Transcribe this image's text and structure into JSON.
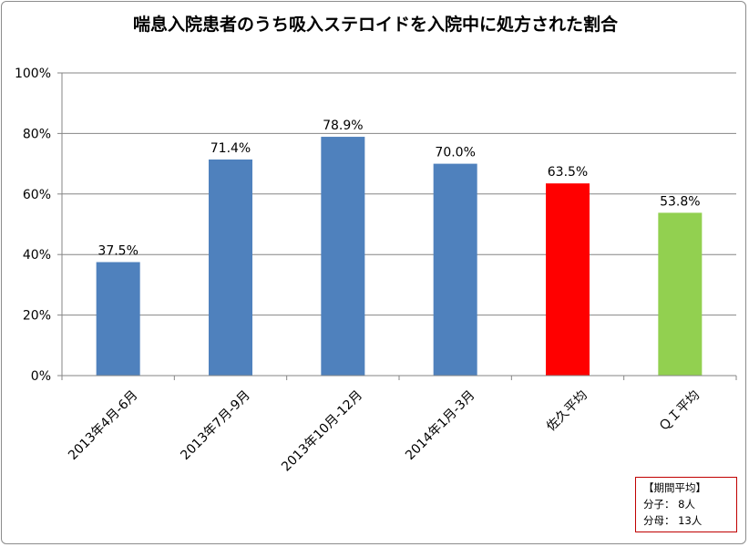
{
  "chart_data": {
    "type": "bar",
    "title": "喘息入院患者のうち吸入ステロイドを入院中に処方された割合",
    "categories": [
      "2013年4月-6月",
      "2013年7月-9月",
      "2013年10月-12月",
      "2014年1月-3月",
      "佐久平均",
      "ＱＩ平均"
    ],
    "values": [
      37.5,
      71.4,
      78.9,
      70.0,
      63.5,
      53.8
    ],
    "data_labels": [
      "37.5%",
      "71.4%",
      "78.9%",
      "70.0%",
      "63.5%",
      "53.8%"
    ],
    "bar_colors": [
      "#4f81bd",
      "#4f81bd",
      "#4f81bd",
      "#4f81bd",
      "#ff0000",
      "#92d050"
    ],
    "ylim": [
      0,
      100
    ],
    "y_ticks": [
      0,
      20,
      40,
      60,
      80,
      100
    ],
    "y_tick_labels": [
      "0%",
      "20%",
      "40%",
      "60%",
      "80%",
      "100%"
    ],
    "xlabel": "",
    "ylabel": "",
    "grid": true,
    "legend": "none"
  },
  "stats_box": {
    "heading": "【期間平均】",
    "numerator": "分子：  8人",
    "denominator": "分母：  13人"
  },
  "colors": {
    "grid": "#868686",
    "frame_border": "#8c8c8c",
    "stats_border": "#c00000"
  }
}
